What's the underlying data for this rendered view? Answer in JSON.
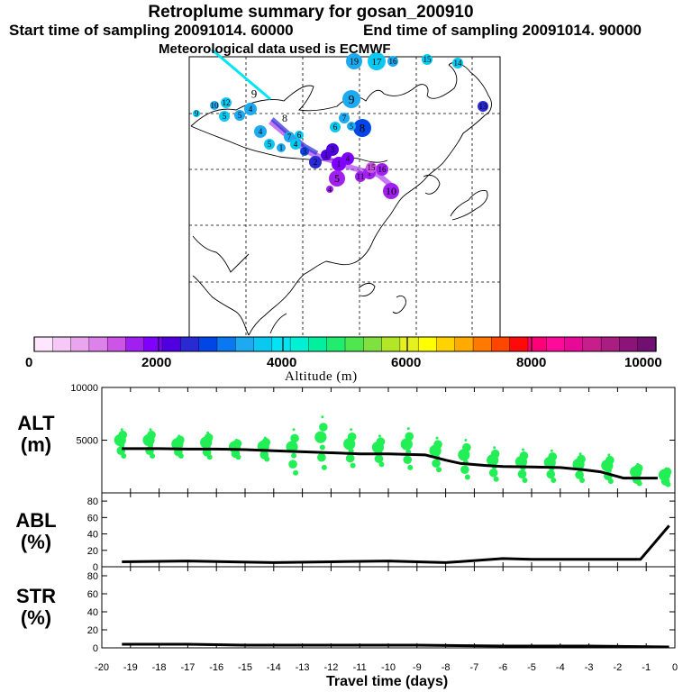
{
  "header": {
    "title": "Retroplume summary for gosan_200910",
    "start_label": "Start time of sampling 20091014. 60000",
    "end_label": "End time of sampling 20091014. 90000",
    "met_label": "Meteorological data used is ECMWF"
  },
  "map": {
    "point_labels": [
      "1",
      "2",
      "3",
      "4",
      "5",
      "6",
      "7",
      "8",
      "9",
      "10",
      "11",
      "12",
      "13",
      "14",
      "15",
      "16",
      "17",
      "18",
      "19"
    ]
  },
  "colorbar": {
    "tick_labels": [
      "0",
      "2000",
      "4000",
      "6000",
      "8000",
      "10000"
    ],
    "axis_label": "Altitude (m)",
    "colors": [
      "#ffe6ff",
      "#f5c8f5",
      "#eaa5ef",
      "#dd82ea",
      "#cc55e6",
      "#a020f0",
      "#8000ff",
      "#5000e0",
      "#2a2ad4",
      "#0046e6",
      "#0a78f0",
      "#1eaaf0",
      "#0ac8f0",
      "#00e4f4",
      "#00f0d4",
      "#00f0a0",
      "#20ec70",
      "#50e650",
      "#80e040",
      "#b4e628",
      "#e6f01e",
      "#ffff00",
      "#ffd200",
      "#ffaa00",
      "#ff7800",
      "#ff4600",
      "#ff0a0a",
      "#ff0078",
      "#ff0a9a",
      "#e60a96",
      "#c81e8c",
      "#aa1e82",
      "#8c1478",
      "#701070"
    ]
  },
  "chart_data": [
    {
      "type": "line",
      "panel": "ALT",
      "label": "ALT",
      "unit": "(m)",
      "x": [
        -19.3,
        -18.0,
        -17.0,
        -16.0,
        -15.0,
        -14.0,
        -13.0,
        -12.0,
        -11.0,
        -10.0,
        -9.4,
        -8.7,
        -8.0,
        -7.5,
        -6.6,
        -6.0,
        -5.0,
        -4.0,
        -3.2,
        -2.6,
        -1.8,
        -0.6
      ],
      "values": [
        4200,
        4200,
        4150,
        4150,
        4100,
        4000,
        3900,
        3800,
        3700,
        3700,
        3650,
        3600,
        3100,
        2800,
        2600,
        2500,
        2450,
        2400,
        2200,
        2000,
        1400,
        1400
      ],
      "scatter_x": [
        -19.3,
        -18.3,
        -17.3,
        -16.3,
        -15.3,
        -14.3,
        -13.3,
        -12.3,
        -11.3,
        -10.3,
        -9.3,
        -8.3,
        -7.3,
        -6.3,
        -5.3,
        -4.3,
        -3.3,
        -2.3,
        -1.3,
        -0.3
      ],
      "scatter_top": [
        6000,
        6000,
        5400,
        5700,
        5000,
        5200,
        6000,
        7200,
        6000,
        5400,
        6100,
        5200,
        5000,
        4300,
        4100,
        4000,
        3700,
        3600,
        2700,
        2300
      ],
      "scatter_bottom": [
        3500,
        3500,
        3500,
        3400,
        3400,
        3200,
        1900,
        2400,
        2600,
        2700,
        2400,
        2200,
        1500,
        1300,
        1200,
        1200,
        1200,
        1100,
        900,
        800
      ],
      "xlim": [
        -20,
        0
      ],
      "ylim": [
        0,
        10000
      ],
      "yticks": [
        "5000",
        "10000"
      ],
      "line_color": "#000000",
      "marker_color": "#22ee55"
    },
    {
      "type": "line",
      "panel": "ABL",
      "label": "ABL",
      "unit": "(%)",
      "x": [
        -19.3,
        -17.0,
        -14.0,
        -12.0,
        -10.0,
        -8.0,
        -6.0,
        -5.0,
        -3.0,
        -1.2,
        -0.2
      ],
      "values": [
        6,
        7,
        5,
        6,
        7,
        5,
        10,
        9,
        9,
        9,
        50
      ],
      "xlim": [
        -20,
        0
      ],
      "ylim": [
        0,
        90
      ],
      "yticks": [
        "0",
        "20",
        "40",
        "60",
        "80"
      ]
    },
    {
      "type": "line",
      "panel": "STR",
      "label": "STR",
      "unit": "(%)",
      "x": [
        -19.3,
        -17.0,
        -15.0,
        -12.0,
        -9.0,
        -6.0,
        -3.0,
        -0.2
      ],
      "values": [
        4,
        4,
        3,
        3,
        3,
        2,
        2,
        1
      ],
      "xlim": [
        -20,
        0
      ],
      "ylim": [
        0,
        90
      ],
      "yticks": [
        "0",
        "20",
        "40",
        "60",
        "80"
      ],
      "xlabel": "Travel time (days)",
      "xticks": [
        "-20",
        "-19",
        "-18",
        "-17",
        "-16",
        "-15",
        "-14",
        "-13",
        "-12",
        "-11",
        "-10",
        "-9",
        "-8",
        "-7",
        "-6",
        "-5",
        "-4",
        "-3",
        "-2",
        "-1",
        "0"
      ]
    }
  ]
}
